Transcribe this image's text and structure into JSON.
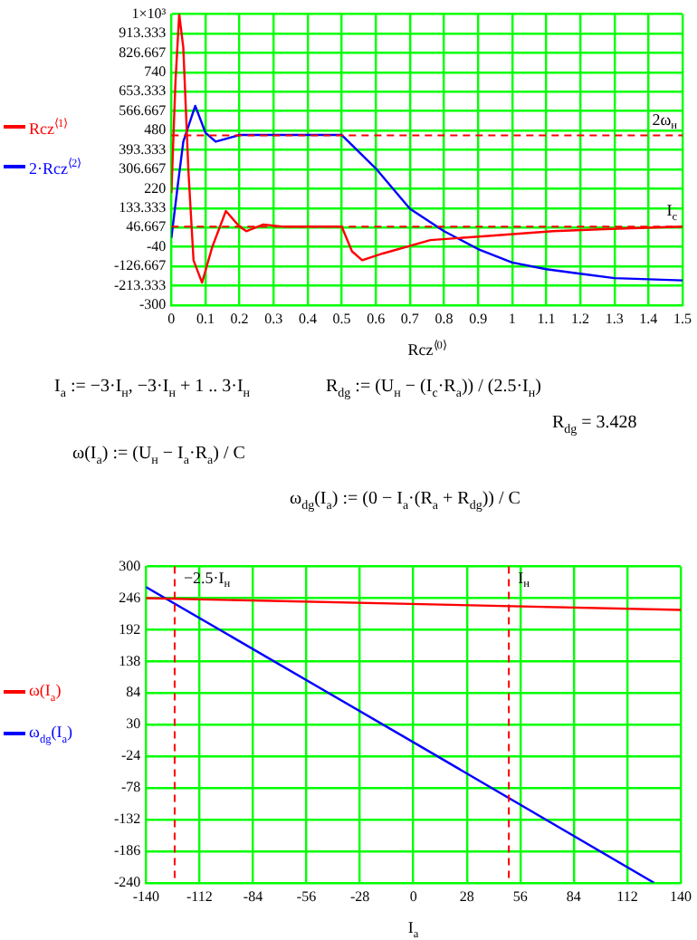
{
  "chart_data": [
    {
      "type": "line",
      "xlabel": "Rcz$^{⟨0⟩}$",
      "xlim": [
        0,
        1.5
      ],
      "xticks": [
        0,
        0.1,
        0.2,
        0.3,
        0.4,
        0.5,
        0.6,
        0.7,
        0.8,
        0.9,
        1,
        1.1,
        1.2,
        1.3,
        1.4,
        1.5
      ],
      "ylim": [
        -300,
        1000
      ],
      "yticks": [
        -300,
        -213.333,
        -126.667,
        -40,
        46.667,
        133.333,
        220,
        306.667,
        393.333,
        480,
        566.667,
        653.333,
        740,
        826.667,
        913.333,
        {
          "value": 1000,
          "label": "1×10³"
        }
      ],
      "grid": true,
      "legend": "left",
      "marker": "none",
      "series": [
        {
          "name": "Rcz$^{⟨1⟩}$",
          "color": "#ff0000",
          "x": [
            0,
            0.012,
            0.023,
            0.035,
            0.05,
            0.065,
            0.09,
            0.12,
            0.16,
            0.2,
            0.22,
            0.27,
            0.33,
            0.5,
            0.53,
            0.56,
            0.62,
            0.76,
            0.94,
            1.12,
            1.29,
            1.5
          ],
          "values": [
            200,
            700,
            1000,
            850,
            300,
            -100,
            -200,
            -40,
            120,
            50,
            30,
            60,
            50,
            50,
            -60,
            -100,
            -70,
            -10,
            10,
            30,
            40,
            50
          ]
        },
        {
          "name": "2·Rcz$^{⟨2⟩}$",
          "color": "#0000ff",
          "x": [
            0,
            0.02,
            0.035,
            0.07,
            0.1,
            0.13,
            0.2,
            0.5,
            0.6,
            0.7,
            0.8,
            0.9,
            1,
            1.1,
            1.2,
            1.3,
            1.5
          ],
          "values": [
            0,
            250,
            430,
            590,
            470,
            430,
            460,
            460,
            310,
            130,
            30,
            -50,
            -110,
            -140,
            -160,
            -180,
            -190
          ]
        }
      ],
      "ref_lines": [
        {
          "axis": "y",
          "value": 458,
          "label": "2ω$_{н}$",
          "color": "#ff0000",
          "line_style": "dashed"
        },
        {
          "axis": "y",
          "value": 50,
          "label": "I$_{c}$",
          "color": "#ff0000",
          "line_style": "dashed"
        }
      ]
    },
    {
      "type": "line",
      "xlabel": "I$_{a}$",
      "xlim": [
        -140,
        140
      ],
      "xticks": [
        -140,
        -112,
        -84,
        -56,
        -28,
        0,
        28,
        56,
        84,
        112,
        140
      ],
      "ylim": [
        -240,
        300
      ],
      "yticks": [
        -240,
        -186,
        -132,
        -78,
        -24,
        30,
        84,
        138,
        192,
        246,
        300
      ],
      "grid": true,
      "legend": "left",
      "marker": "none",
      "series": [
        {
          "name": "ω(I$_{a}$)",
          "color": "#ff0000",
          "x": [
            -140,
            140
          ],
          "values": [
            246,
            226
          ]
        },
        {
          "name": "ω$_{dg}$(I$_{a}$)",
          "color": "#0000ff",
          "x": [
            -140,
            0,
            126
          ],
          "values": [
            265,
            0,
            -240
          ]
        }
      ],
      "ref_lines": [
        {
          "axis": "x",
          "value": -125,
          "label": "−2.5·I$_{н}$",
          "color": "#ff0000",
          "line_style": "dashed"
        },
        {
          "axis": "x",
          "value": 50,
          "label": "I$_{н}$",
          "color": "#ff0000",
          "line_style": "dashed"
        }
      ],
      "annotations": [
        "I$_{a}$ := −3·I$_{н}$, −3·I$_{н}$ + 1 .. 3·I$_{н}$",
        "R$_{dg}$ := (U$_{н}$ − (I$_{c}$·R$_{a}$)) / (2.5·I$_{н}$)",
        "R$_{dg}$ = 3.428",
        "ω(I$_{a}$) := (U$_{н}$ − I$_{a}$·R$_{a}$) / C",
        "ω$_{dg}$(I$_{a}$) := (0 − I$_{a}$·(R$_{a}$ + R$_{dg}$)) / C"
      ]
    }
  ]
}
